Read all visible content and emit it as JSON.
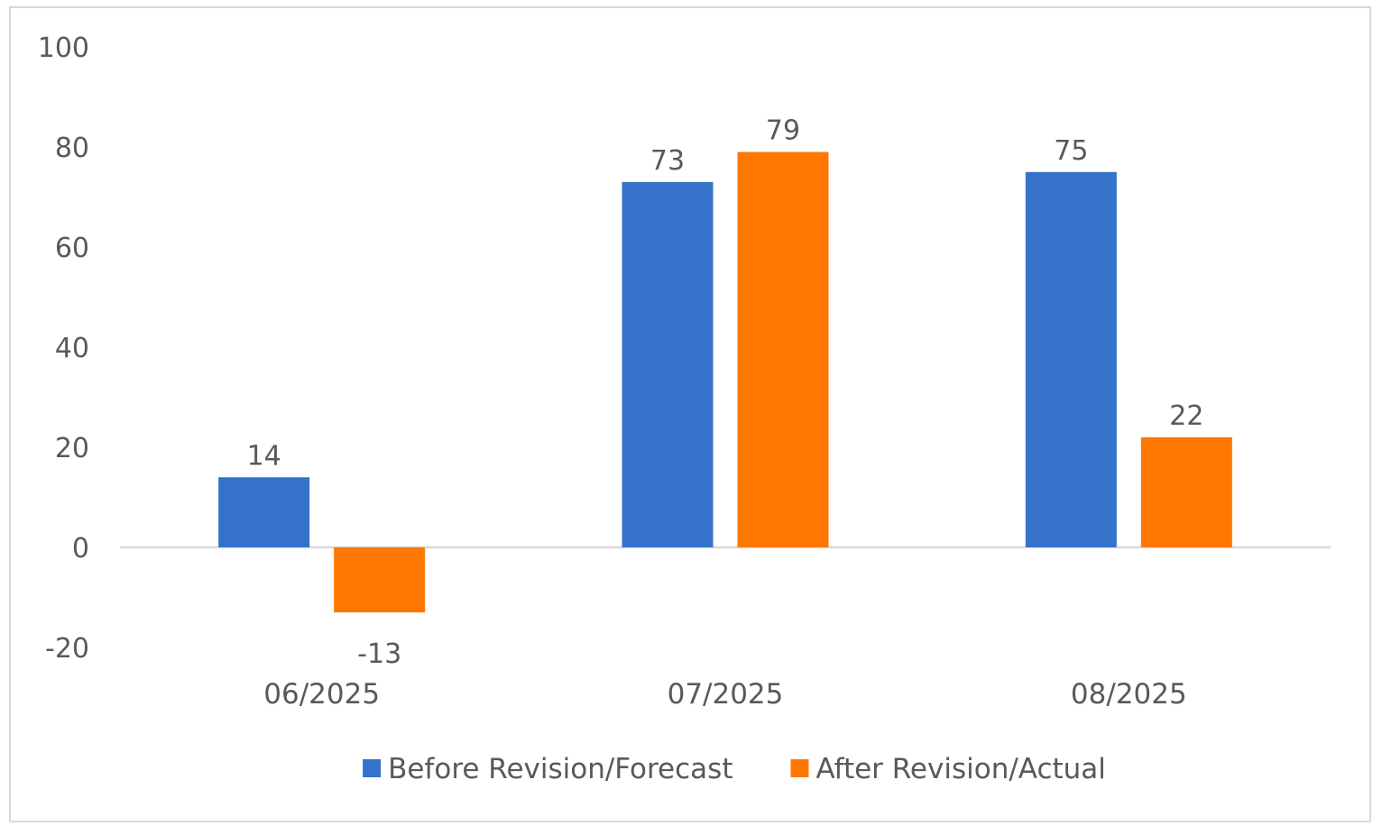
{
  "chart_data": {
    "type": "bar",
    "title": "",
    "xlabel": "",
    "ylabel": "",
    "categories": [
      "06/2025",
      "07/2025",
      "08/2025"
    ],
    "series": [
      {
        "name": "Before Revision/Forecast",
        "color": "#3572C9",
        "values": [
          14,
          73,
          75
        ],
        "labels": [
          "14",
          "73",
          "75"
        ]
      },
      {
        "name": "After Revision/Actual",
        "color": "#FF7700",
        "values": [
          -13,
          79,
          22
        ],
        "labels": [
          "-13",
          "79",
          "22"
        ]
      }
    ],
    "ylim": [
      -20,
      100
    ],
    "yticks": [
      100,
      80,
      60,
      40,
      20,
      0,
      -20
    ],
    "ytick_labels": [
      "100",
      "80",
      "60",
      "40",
      "20",
      "0",
      "-20"
    ],
    "grid": false,
    "zero_line_color": "#d9d9d9",
    "legend_position": "bottom"
  }
}
